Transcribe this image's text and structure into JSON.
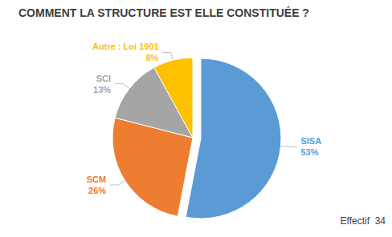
{
  "chart_data": {
    "type": "pie",
    "title": "COMMENT LA STRUCTURE EST ELLE CONSTITUÉE ?",
    "categories": [
      "SISA",
      "SCM",
      "SCI",
      "Autre : Loi 1901"
    ],
    "values": [
      53,
      26,
      13,
      8
    ],
    "value_labels": [
      "53%",
      "26%",
      "13%",
      "8%"
    ],
    "colors": [
      "#5b9bd5",
      "#ed7d31",
      "#a5a5a5",
      "#ffc000"
    ],
    "data_labels": true,
    "annotation": "Effectif  34"
  }
}
